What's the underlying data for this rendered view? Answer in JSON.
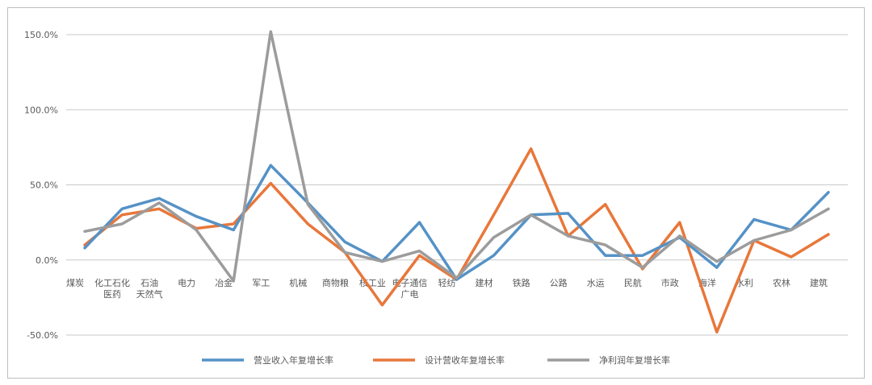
{
  "chart_data": {
    "type": "line",
    "categories": [
      "煤炭",
      "化工石化\n医药",
      "石油\n天然气",
      "电力",
      "冶金",
      "军工",
      "机械",
      "商物粮",
      "核工业",
      "电子通信\n广电",
      "轻纺",
      "建材",
      "铁路",
      "公路",
      "水运",
      "民航",
      "市政",
      "海洋",
      "水利",
      "农林",
      "建筑"
    ],
    "ylim": [
      -50,
      150
    ],
    "yticks": [
      -50,
      0,
      50,
      100,
      150
    ],
    "ytick_labels": [
      "-50.0%",
      "0.0%",
      "50.0%",
      "100.0%",
      "150.0%"
    ],
    "grid": true,
    "legend_position": "bottom",
    "series": [
      {
        "name": "营业收入年复增长率",
        "color": "#5592c6",
        "values": [
          8,
          34,
          41,
          29,
          20,
          63,
          38,
          12,
          -1,
          25,
          -13,
          3,
          30,
          31,
          3,
          3,
          15,
          -5,
          27,
          20,
          45
        ]
      },
      {
        "name": "设计营收年复增长率",
        "color": "#e8773a",
        "values": [
          10,
          30,
          34,
          21,
          24,
          51,
          24,
          5,
          -30,
          3,
          -13,
          30,
          74,
          16,
          37,
          -6,
          25,
          -48,
          13,
          2,
          17
        ]
      },
      {
        "name": "净利润年复增长率",
        "color": "#9c9c9c",
        "values": [
          19,
          24,
          38,
          20,
          -14,
          152,
          37,
          5,
          -1,
          6,
          -12,
          15,
          30,
          16,
          10,
          -5,
          16,
          -1,
          13,
          20,
          34
        ]
      }
    ]
  }
}
